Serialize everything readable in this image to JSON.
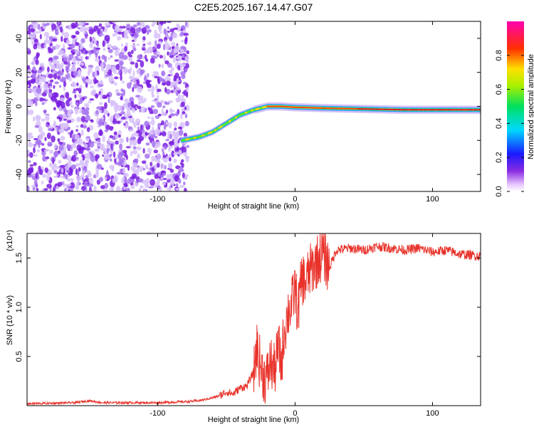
{
  "title": "C2E5.2025.167.14.47.G07",
  "chart_data": [
    {
      "type": "heatmap",
      "xlabel": "Height of straight line (km)",
      "ylabel": "Frequency (Hz)",
      "xlim": [
        -195,
        135
      ],
      "ylim": [
        -50,
        50
      ],
      "xticks": [
        -100,
        0,
        100
      ],
      "yticks": [
        -40,
        -20,
        0,
        20,
        40
      ],
      "colorbar": {
        "label": "Normalized spectral amplitude",
        "range": [
          0,
          1
        ],
        "ticks": [
          0.0,
          0.2,
          0.4,
          0.6,
          0.8
        ],
        "tick_labels": [
          "0.0",
          "0.2",
          "0.4",
          "0.6",
          "0.8"
        ],
        "colormap": "rainbow (purple-blue-cyan-green-yellow-red-magenta)"
      },
      "noise_region": {
        "x_range": [
          -195,
          -78
        ],
        "freq_range": [
          -50,
          50
        ]
      },
      "frequency_track": [
        [
          -82,
          -20
        ],
        [
          -70,
          -18
        ],
        [
          -60,
          -15
        ],
        [
          -50,
          -10
        ],
        [
          -40,
          -5
        ],
        [
          -30,
          -2
        ],
        [
          -20,
          0
        ],
        [
          -10,
          0
        ],
        [
          0,
          -0.5
        ],
        [
          20,
          -1
        ],
        [
          50,
          -1.5
        ],
        [
          80,
          -2
        ],
        [
          100,
          -2
        ],
        [
          135,
          -2
        ]
      ]
    },
    {
      "type": "line",
      "xlabel": "Height of straight line (km)",
      "ylabel": "SNR (10 * v/v)",
      "y_multiplier": "(x10⁴)",
      "xlim": [
        -195,
        135
      ],
      "ylim": [
        0,
        1.75
      ],
      "xticks": [
        -100,
        0,
        100
      ],
      "yticks": [
        0.5,
        1.0,
        1.5
      ],
      "ytick_labels": [
        "0.5",
        "1.0",
        "1.5"
      ],
      "series": [
        {
          "color": "#e8322a",
          "x": [
            -195,
            -160,
            -150,
            -140,
            -120,
            -100,
            -80,
            -70,
            -60,
            -55,
            -50,
            -45,
            -40,
            -35,
            -30,
            -28,
            -25,
            -22,
            -20,
            -18,
            -15,
            -12,
            -10,
            -8,
            -5,
            -2,
            0,
            2,
            5,
            8,
            10,
            15,
            20,
            25,
            30,
            40,
            50,
            60,
            70,
            80,
            90,
            100,
            110,
            120,
            135
          ],
          "y": [
            0.02,
            0.03,
            0.05,
            0.03,
            0.03,
            0.03,
            0.04,
            0.05,
            0.08,
            0.1,
            0.14,
            0.12,
            0.18,
            0.2,
            0.35,
            0.6,
            0.4,
            0.28,
            0.3,
            0.45,
            0.35,
            0.6,
            0.4,
            0.75,
            0.95,
            1.05,
            1.2,
            0.95,
            1.3,
            1.25,
            1.35,
            1.45,
            1.55,
            1.4,
            1.58,
            1.6,
            1.58,
            1.62,
            1.6,
            1.58,
            1.6,
            1.56,
            1.58,
            1.54,
            1.52
          ]
        }
      ]
    }
  ]
}
